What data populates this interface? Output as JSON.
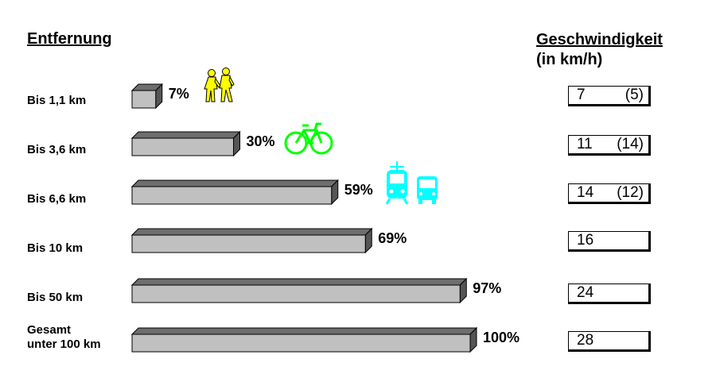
{
  "headings": {
    "distance": "Entfernung",
    "speed_line1": "Geschwindigkeit",
    "speed_line2": "(in km/h)"
  },
  "chart_data": {
    "type": "bar",
    "orientation": "horizontal",
    "categories": [
      "Bis 1,1 km",
      "Bis 3,6 km",
      "Bis 6,6 km",
      "Bis 10 km",
      "Bis 50 km",
      "Gesamt\nunter 100 km"
    ],
    "values": [
      7,
      30,
      59,
      69,
      97,
      100
    ],
    "value_labels": [
      "7%",
      "30%",
      "59%",
      "69%",
      "97%",
      "100%"
    ],
    "xlim": [
      0,
      100
    ],
    "grid": false,
    "bar_color": "#c0c0c0",
    "speed_values": [
      "7",
      "11",
      "14",
      "16",
      "24",
      "28"
    ],
    "speed_extra": [
      "(5)",
      "(14)",
      "(12)",
      "",
      "",
      ""
    ]
  },
  "icons": [
    {
      "name": "pedestrians-icon",
      "row": 0,
      "color": "#ffff00"
    },
    {
      "name": "bicycle-icon",
      "row": 1,
      "color": "#00ff00"
    },
    {
      "name": "tram-icon",
      "row": 2,
      "color": "#00ffff"
    },
    {
      "name": "bus-icon",
      "row": 2,
      "color": "#00ffff"
    }
  ]
}
